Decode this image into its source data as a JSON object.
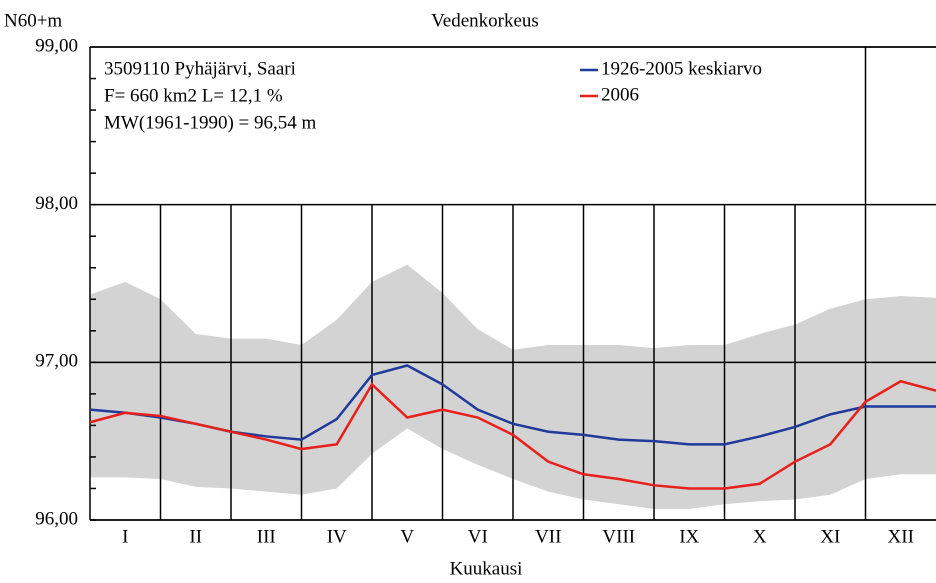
{
  "chart_data": {
    "type": "line",
    "title": "Vedenkorkeus",
    "y_label": "N60+m",
    "x_label": "Kuukausi",
    "annotations": [
      "3509110 Pyhäjärvi, Saari",
      "F=    660 km2 L=  12,1 %",
      "MW(1961-1990) = 96,54 m"
    ],
    "categories": [
      "I",
      "II",
      "III",
      "IV",
      "V",
      "VI",
      "VII",
      "VIII",
      "IX",
      "X",
      "XI",
      "XII"
    ],
    "xlim": [
      0,
      12
    ],
    "x": [
      0,
      0.5,
      1,
      1.5,
      2,
      2.5,
      3,
      3.5,
      4,
      4.5,
      5,
      5.5,
      6,
      6.5,
      7,
      7.5,
      8,
      8.5,
      9,
      9.5,
      10,
      10.5,
      11,
      11.5,
      12
    ],
    "ylim": [
      96,
      99
    ],
    "yticks": [
      {
        "value": 96,
        "label": "96,00"
      },
      {
        "value": 97,
        "label": "97,00"
      },
      {
        "value": 98,
        "label": "98,00"
      },
      {
        "value": 99,
        "label": "99,00"
      }
    ],
    "band": {
      "color": "#d3d3d3",
      "upper": [
        97.43,
        97.51,
        97.4,
        97.18,
        97.15,
        97.15,
        97.11,
        97.27,
        97.51,
        97.62,
        97.44,
        97.21,
        97.08,
        97.11,
        97.11,
        97.11,
        97.09,
        97.11,
        97.11,
        97.18,
        97.24,
        97.34,
        97.4,
        97.42,
        97.41
      ],
      "lower": [
        96.27,
        96.27,
        96.26,
        96.21,
        96.2,
        96.18,
        96.16,
        96.2,
        96.42,
        96.58,
        96.45,
        96.35,
        96.26,
        96.18,
        96.13,
        96.1,
        96.07,
        96.07,
        96.1,
        96.12,
        96.13,
        96.16,
        96.26,
        96.29,
        96.29
      ]
    },
    "series": [
      {
        "name": "1926-2005 keskiarvo",
        "color": "#1f3a9a",
        "values": [
          96.7,
          96.68,
          96.65,
          96.61,
          96.56,
          96.53,
          96.51,
          96.64,
          96.92,
          96.98,
          96.86,
          96.7,
          96.61,
          96.56,
          96.54,
          96.51,
          96.5,
          96.48,
          96.48,
          96.53,
          96.59,
          96.67,
          96.72,
          96.72,
          96.72
        ]
      },
      {
        "name": "2006",
        "color": "#e8201c",
        "values": [
          96.62,
          96.68,
          96.66,
          96.61,
          96.56,
          96.51,
          96.45,
          96.48,
          96.86,
          96.65,
          96.7,
          96.65,
          96.54,
          96.37,
          96.29,
          96.26,
          96.22,
          96.2,
          96.2,
          96.23,
          96.37,
          96.48,
          96.75,
          96.88,
          96.82
        ]
      }
    ]
  }
}
